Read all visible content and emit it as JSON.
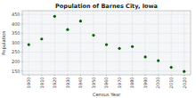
{
  "chart_data": {
    "type": "scatter",
    "title": "Population of Barnes City, Iowa",
    "x_label": "Census Year",
    "y_label": "Population",
    "x": [
      1900,
      1910,
      1920,
      1930,
      1940,
      1950,
      1960,
      1970,
      1980,
      1990,
      2000,
      2010,
      2020
    ],
    "values": [
      290,
      320,
      440,
      370,
      415,
      340,
      290,
      270,
      280,
      225,
      205,
      170,
      148
    ],
    "color": "#006400",
    "xlim": [
      1895,
      2025
    ],
    "ylim": [
      130,
      470
    ],
    "xticks": [
      1900,
      1910,
      1920,
      1930,
      1940,
      1950,
      1960,
      1970,
      1980,
      1990,
      2000,
      2010,
      2020
    ],
    "yticks": [
      150,
      200,
      250,
      300,
      350,
      400,
      450
    ],
    "grid": true
  }
}
